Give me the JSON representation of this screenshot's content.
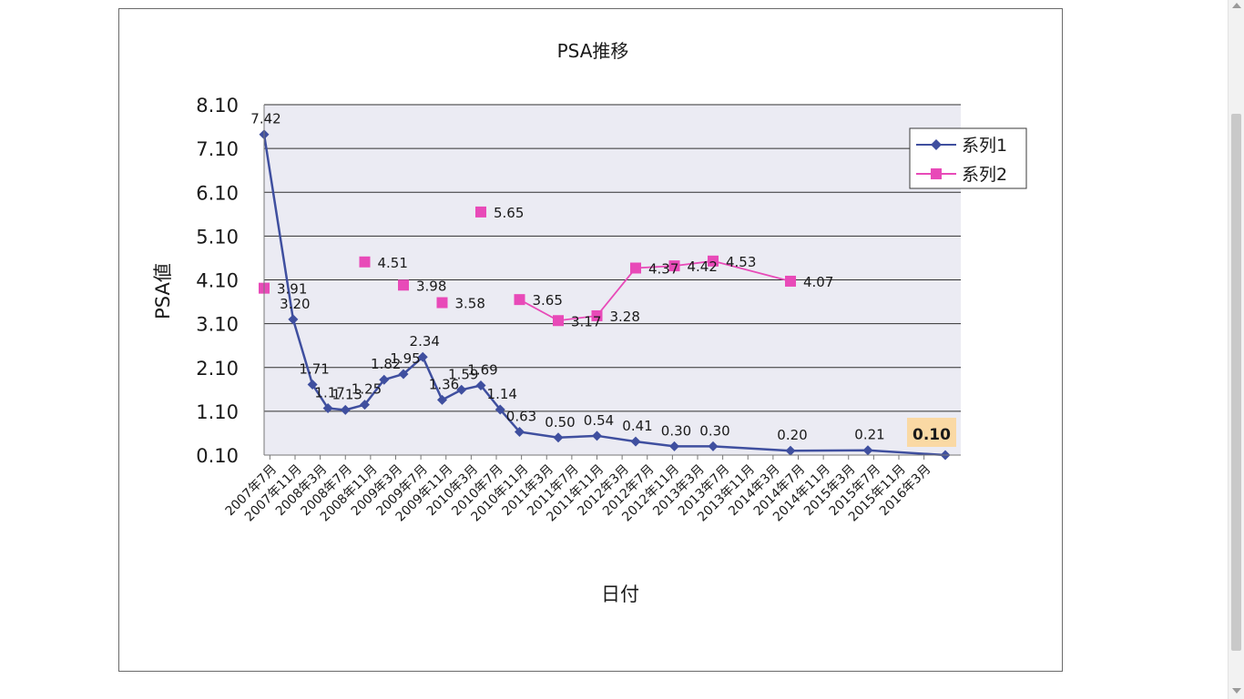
{
  "chart_data": {
    "type": "line",
    "title": "PSA推移",
    "xlabel": "日付",
    "ylabel": "PSA値",
    "ylim": [
      0.1,
      8.1
    ],
    "yticks": [
      "0.10",
      "1.10",
      "2.10",
      "3.10",
      "4.10",
      "5.10",
      "6.10",
      "7.10",
      "8.10"
    ],
    "grid": true,
    "legend_position": "top-right",
    "categories": [
      "2007年7月",
      "2007年11月",
      "2008年3月",
      "2008年7月",
      "2008年11月",
      "2009年3月",
      "2009年7月",
      "2009年11月",
      "2010年3月",
      "2010年7月",
      "2010年11月",
      "2011年3月",
      "2011年7月",
      "2011年11月",
      "2012年3月",
      "2012年7月",
      "2012年11月",
      "2013年3月",
      "2013年7月",
      "2013年11月",
      "2014年3月",
      "2014年7月",
      "2014年11月",
      "2015年3月",
      "2015年7月",
      "2015年11月",
      "2016年3月"
    ],
    "series": [
      {
        "name": "系列1",
        "color": "#3f4f9f",
        "marker": "diamond",
        "points": [
          {
            "x": 0,
            "y": 7.42,
            "label": "7.42"
          },
          {
            "x": 1.5,
            "y": 3.2,
            "label": "3.20"
          },
          {
            "x": 2.5,
            "y": 1.71,
            "label": "1.71"
          },
          {
            "x": 3.3,
            "y": 1.17,
            "label": "1.17"
          },
          {
            "x": 4.2,
            "y": 1.13,
            "label": "1.13"
          },
          {
            "x": 5.2,
            "y": 1.25,
            "label": "1.25"
          },
          {
            "x": 6.2,
            "y": 1.82,
            "label": "1.82"
          },
          {
            "x": 7.2,
            "y": 1.95,
            "label": "1.95"
          },
          {
            "x": 8.2,
            "y": 2.34,
            "label": "2.34"
          },
          {
            "x": 9.2,
            "y": 1.36,
            "label": "1.36"
          },
          {
            "x": 10.2,
            "y": 1.59,
            "label": "1.59"
          },
          {
            "x": 11.2,
            "y": 1.69,
            "label": "1.69"
          },
          {
            "x": 12.2,
            "y": 1.14,
            "label": "1.14"
          },
          {
            "x": 13.2,
            "y": 0.63,
            "label": "0.63"
          },
          {
            "x": 15.2,
            "y": 0.5,
            "label": "0.50"
          },
          {
            "x": 17.2,
            "y": 0.54,
            "label": "0.54"
          },
          {
            "x": 19.2,
            "y": 0.41,
            "label": "0.41"
          },
          {
            "x": 21.2,
            "y": 0.3,
            "label": "0.30"
          },
          {
            "x": 23.2,
            "y": 0.3,
            "label": "0.30"
          },
          {
            "x": 27.2,
            "y": 0.2,
            "label": "0.20"
          },
          {
            "x": 31.2,
            "y": 0.21,
            "label": "0.21"
          },
          {
            "x": 35.2,
            "y": 0.1,
            "label": "0.10",
            "highlight": true
          }
        ]
      },
      {
        "name": "系列2",
        "color": "#e84ab8",
        "marker": "square",
        "segments": [
          [
            0
          ],
          [
            5
          ],
          [
            7
          ],
          [
            9
          ],
          [
            11
          ],
          [
            13,
            15,
            17,
            19,
            21,
            23,
            27
          ]
        ],
        "points": [
          {
            "x": 0,
            "y": 3.91,
            "label": "3.91"
          },
          {
            "x": 5.2,
            "y": 4.51,
            "label": "4.51"
          },
          {
            "x": 7.2,
            "y": 3.98,
            "label": "3.98"
          },
          {
            "x": 9.2,
            "y": 3.58,
            "label": "3.58"
          },
          {
            "x": 11.2,
            "y": 5.65,
            "label": "5.65"
          },
          {
            "x": 13.2,
            "y": 3.65,
            "label": "3.65"
          },
          {
            "x": 15.2,
            "y": 3.17,
            "label": "3.17"
          },
          {
            "x": 17.2,
            "y": 3.28,
            "label": "3.28"
          },
          {
            "x": 19.2,
            "y": 4.37,
            "label": "4.37"
          },
          {
            "x": 21.2,
            "y": 4.42,
            "label": "4.42"
          },
          {
            "x": 23.2,
            "y": 4.53,
            "label": "4.53"
          },
          {
            "x": 27.2,
            "y": 4.07,
            "label": "4.07"
          }
        ]
      }
    ]
  },
  "colors": {
    "plot_background": "#ebebf3",
    "gridline": "#303030",
    "highlight_box": "#fad9a4"
  }
}
